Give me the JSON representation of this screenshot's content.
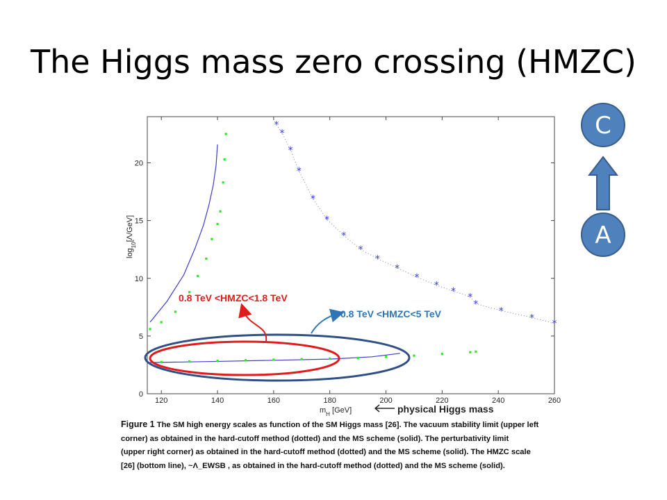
{
  "slide": {
    "title": "The Higgs mass zero crossing (HMZC)",
    "flow_top": "C",
    "flow_bottom": "A"
  },
  "annotations": {
    "red_label": "0.8 TeV <HMZC<1.8  TeV",
    "blue_label": "0.8 TeV <HMZC<5  TeV",
    "physical_label": "physical  Higgs mass"
  },
  "caption": {
    "line1_bold": "Figure 1",
    "line1": "The SM high energy scales as function of the SM Higgs mass [26]. The vacuum stability limit (upper left",
    "line2": "corner) as obtained in the hard-cutoff method (dotted) and the MS scheme (solid). The perturbativity limit",
    "line3": "(upper right corner) as obtained in the hard-cutoff method (dotted) and the MS scheme (solid). The HMZC scale",
    "line4": "[26] (bottom line), ~Λ_EWSB , as obtained in the hard-cutoff method (dotted) and the MS scheme (solid)."
  },
  "colors": {
    "blue_curve": "#3b3bd6",
    "green_dots": "#22ee22",
    "red_annotation": "#e01b1b",
    "blue_annotation": "#2e75b6",
    "ellipse_blue": "#2f4f86",
    "node_fill": "#4f81bd"
  },
  "chart_data": {
    "type": "line",
    "xlabel": "m_H [GeV]",
    "ylabel": "log10[Λ/GeV]",
    "xlim": [
      115,
      260
    ],
    "ylim": [
      0,
      24
    ],
    "xticks": [
      120,
      140,
      160,
      180,
      200,
      220,
      240,
      260
    ],
    "yticks": [
      0,
      5,
      10,
      15,
      20
    ],
    "series": [
      {
        "style": "solid",
        "color": "#3b3bd6",
        "x": [
          116,
          122,
          128,
          132,
          135,
          137,
          138.5,
          139.5,
          140
        ],
        "y": [
          6.2,
          8.0,
          10.3,
          12.6,
          14.6,
          16.4,
          18.1,
          19.8,
          21.6
        ]
      },
      {
        "style": "dots",
        "color": "#22ee22",
        "x": [
          116,
          120,
          125,
          130,
          133,
          136,
          138,
          140,
          141,
          142,
          142.5,
          143
        ],
        "y": [
          5.6,
          6.2,
          7.1,
          8.8,
          10.2,
          11.7,
          13.4,
          14.7,
          15.8,
          18.3,
          20.3,
          22.5
        ]
      },
      {
        "style": "star-dotted",
        "color": "#3b3bd6",
        "x": [
          161,
          163,
          166,
          169,
          174,
          179,
          185,
          191,
          197,
          204,
          211,
          218,
          224,
          230,
          232,
          241,
          252,
          260
        ],
        "y": [
          23.3,
          22.6,
          21.1,
          19.3,
          16.9,
          15.1,
          13.7,
          12.5,
          11.7,
          10.9,
          10.1,
          9.4,
          8.9,
          8.4,
          7.8,
          7.2,
          6.6,
          6.1
        ]
      },
      {
        "style": "solid",
        "color": "#3b3bd6",
        "x": [
          115,
          140,
          160,
          180,
          195,
          205
        ],
        "y": [
          2.7,
          2.8,
          2.9,
          3.0,
          3.2,
          3.5
        ]
      },
      {
        "style": "dots",
        "color": "#22ee22",
        "x": [
          120,
          130,
          140,
          150,
          160,
          170,
          180,
          190,
          200,
          210,
          220,
          230,
          232
        ],
        "y": [
          2.75,
          2.8,
          2.85,
          2.9,
          2.95,
          3.0,
          3.05,
          3.1,
          3.2,
          3.3,
          3.45,
          3.6,
          3.65
        ]
      }
    ]
  }
}
